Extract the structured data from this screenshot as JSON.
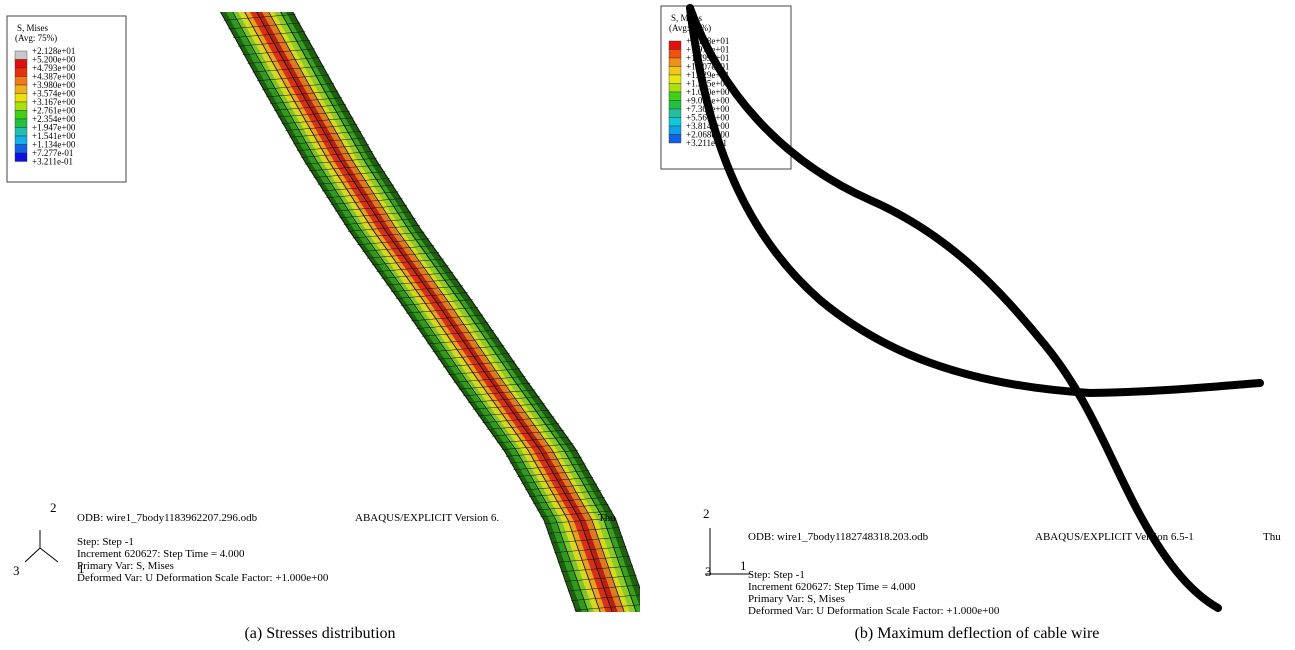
{
  "panels": [
    {
      "legend": {
        "title": "S, Mises",
        "subtitle": "(Avg: 75%)",
        "levels": [
          "+2.128e+01",
          "+5.200e+00",
          "+4.793e+00",
          "+4.387e+00",
          "+3.980e+00",
          "+3.574e+00",
          "+3.167e+00",
          "+2.761e+00",
          "+2.354e+00",
          "+1.947e+00",
          "+1.541e+00",
          "+1.134e+00",
          "+7.277e-01",
          "+3.211e-01"
        ]
      },
      "triad": [
        "2",
        "3",
        "1"
      ],
      "info": {
        "odb": "ODB: wire1_7body1183962207.296.odb",
        "version": "ABAQUS/EXPLICIT Version 6.",
        "day": "Thu",
        "step": "Step: Step -1",
        "increment": "Increment 620627: Step Time = 4.000",
        "primary": "Primary Var: S, Mises",
        "deformed": "Deformed Var: U Deformation Scale Factor: +1.000e+00"
      },
      "caption": "(a) Stresses distribution"
    },
    {
      "legend": {
        "title": "S, Mises",
        "subtitle": "(Avg: 75%)",
        "levels": [
          "+2.128e+01",
          "+1.974e+01",
          "+1.799e+01",
          "+1.607e+01",
          "+1.429e+01",
          "+1.255e+01",
          "+1.080e+00",
          "+9.055e+00",
          "+7.308e+00",
          "+5.561e+00",
          "+3.814e+00",
          "+2.068e+00",
          "+3.211e-01"
        ]
      },
      "triad": [
        "2",
        "3",
        "1"
      ],
      "info": {
        "odb": "ODB: wire1_7body1182748318.203.odb",
        "version": "ABAQUS/EXPLICIT Version 6.5-1",
        "day": "Thu",
        "step": "Step: Step -1",
        "increment": "Increment 620627: Step Time = 4.000",
        "primary": "Primary Var: S, Mises",
        "deformed": "Deformed Var: U Deformation Scale Factor: +1.000e+00"
      },
      "caption": "(b) Maximum deflection of cable wire"
    }
  ]
}
